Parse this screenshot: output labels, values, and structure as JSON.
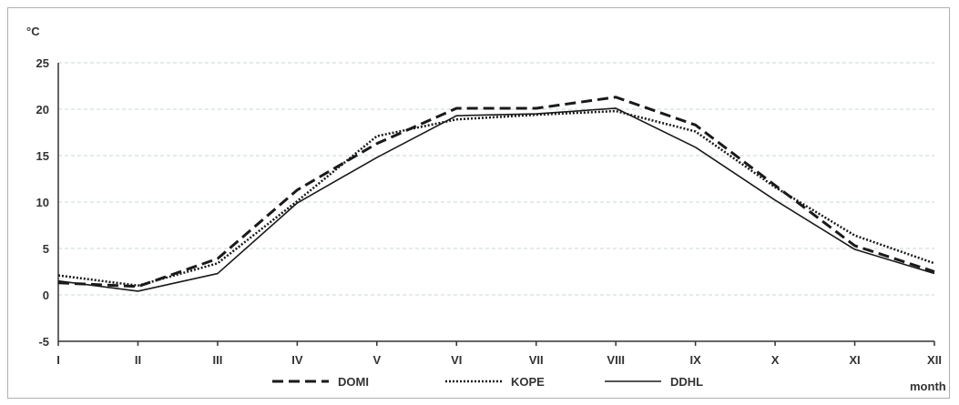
{
  "chart_data": {
    "type": "line",
    "title": "",
    "xlabel": "month",
    "ylabel": "°C",
    "categories": [
      "I",
      "II",
      "III",
      "IV",
      "V",
      "VI",
      "VII",
      "VIII",
      "IX",
      "X",
      "XI",
      "XII"
    ],
    "ylim": [
      -5,
      25
    ],
    "yticks": [
      -5,
      0,
      5,
      10,
      15,
      20,
      25
    ],
    "grid": "horizontal dashed",
    "legend_position": "bottom-center",
    "series": [
      {
        "name": "DOMI",
        "style": "dashed",
        "color": "#1a1a1a",
        "values": [
          1.3,
          0.9,
          3.9,
          11.3,
          16.3,
          20.1,
          20.1,
          21.3,
          18.3,
          11.8,
          5.3,
          2.5
        ]
      },
      {
        "name": "KOPE",
        "style": "dotted",
        "color": "#1a1a1a",
        "values": [
          2.1,
          1.0,
          3.4,
          10.1,
          17.1,
          18.9,
          19.4,
          19.8,
          17.6,
          11.6,
          6.4,
          3.4
        ]
      },
      {
        "name": "DDHL",
        "style": "solid",
        "color": "#1a1a1a",
        "values": [
          1.5,
          0.4,
          2.3,
          9.9,
          14.8,
          19.3,
          19.5,
          20.1,
          15.9,
          10.2,
          4.9,
          2.3
        ]
      }
    ]
  }
}
